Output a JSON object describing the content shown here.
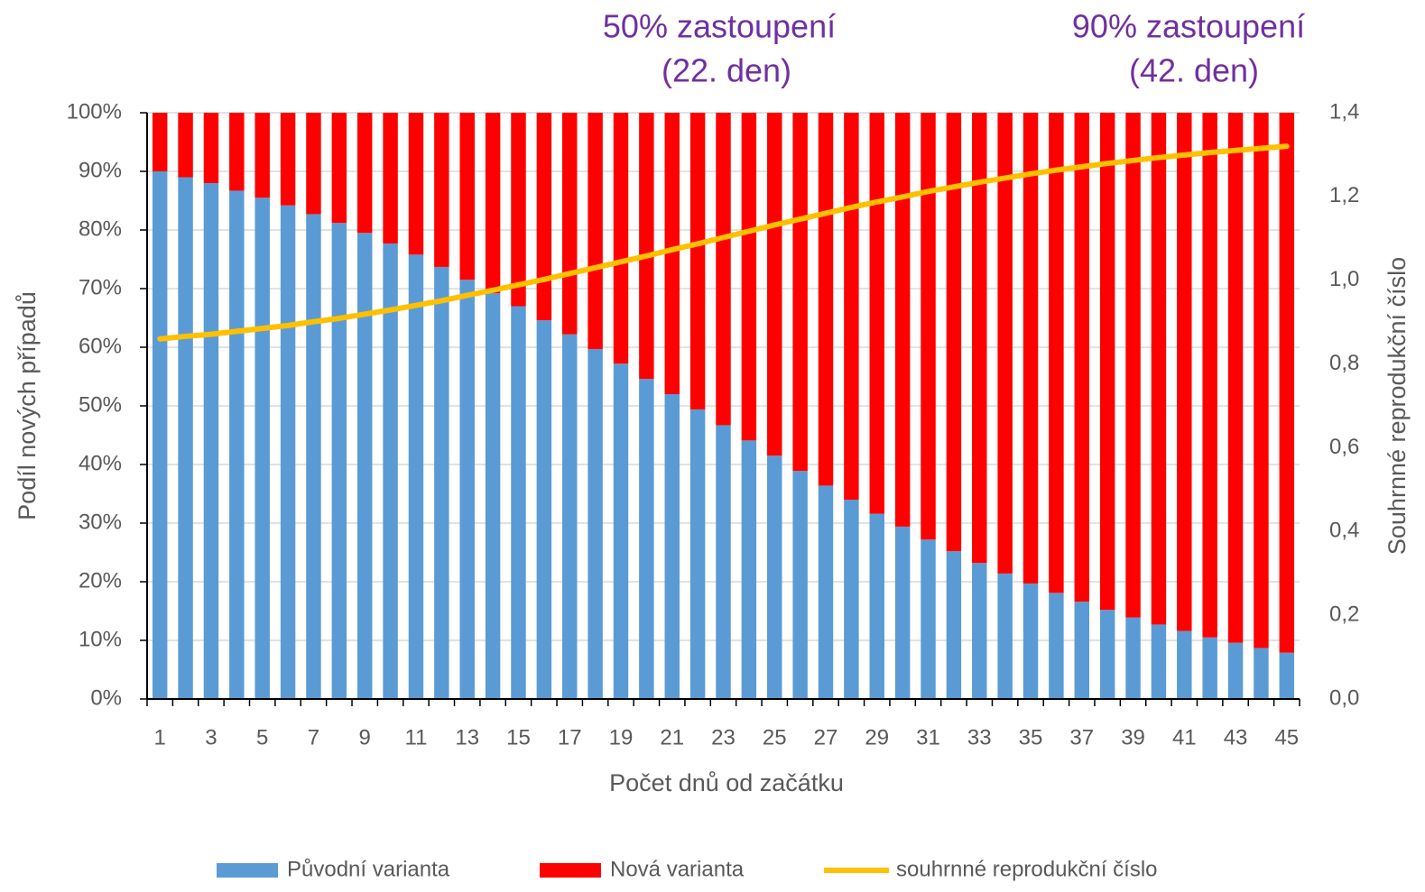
{
  "chart_data": {
    "type": "bar",
    "stacked": true,
    "annotations": [
      "50% zastoupení",
      "(22. den)",
      "90% zastoupení",
      "(42. den)"
    ],
    "xlabel": "Počet dnů od začátku",
    "ylabel": "Podíl nových případů",
    "y2label": "Souhrnné reprodukční číslo",
    "categories": [
      "1",
      null,
      "3",
      null,
      "5",
      null,
      "7",
      null,
      "9",
      null,
      "11",
      null,
      "13",
      null,
      "15",
      null,
      "17",
      null,
      "19",
      null,
      "21",
      null,
      "23",
      null,
      "25",
      null,
      "27",
      null,
      "29",
      null,
      "31",
      null,
      "33",
      null,
      "35",
      null,
      "37",
      null,
      "39",
      null,
      "41",
      null,
      "43",
      null,
      "45"
    ],
    "series": [
      {
        "name": "Původní varianta",
        "color": "#5b9bd5",
        "values": [
          90,
          89,
          88,
          86.7,
          85.5,
          84.2,
          82.7,
          81.2,
          79.5,
          77.7,
          75.8,
          73.7,
          71.5,
          69.2,
          67,
          64.6,
          62.2,
          59.7,
          57.2,
          54.6,
          52,
          49.4,
          46.7,
          44.1,
          41.5,
          38.9,
          36.4,
          34,
          31.6,
          29.4,
          27.2,
          25.2,
          23.2,
          21.4,
          19.7,
          18.1,
          16.6,
          15.2,
          13.9,
          12.7,
          11.6,
          10.5,
          9.6,
          8.7,
          7.9
        ]
      },
      {
        "name": "Nová varianta",
        "color": "#ff0000",
        "values": [
          10,
          11,
          12,
          13.3,
          14.5,
          15.8,
          17.3,
          18.8,
          20.5,
          22.3,
          24.2,
          26.3,
          28.5,
          30.8,
          33,
          35.4,
          37.8,
          40.3,
          42.8,
          45.4,
          48,
          50.6,
          53.3,
          55.9,
          58.5,
          61.1,
          63.6,
          66,
          68.4,
          70.6,
          72.8,
          74.8,
          76.8,
          78.6,
          80.3,
          81.9,
          83.4,
          84.8,
          86.1,
          87.3,
          88.4,
          89.5,
          90.4,
          91.3,
          92.1
        ]
      },
      {
        "name": "souhrnné reprodukční číslo",
        "color": "#ffc000",
        "type": "line",
        "axis": "y2",
        "values": [
          0.86,
          0.866,
          0.871,
          0.878,
          0.885,
          0.892,
          0.901,
          0.909,
          0.919,
          0.929,
          0.94,
          0.951,
          0.964,
          0.976,
          0.989,
          1.002,
          1.016,
          1.03,
          1.044,
          1.058,
          1.073,
          1.087,
          1.102,
          1.117,
          1.132,
          1.146,
          1.16,
          1.174,
          1.187,
          1.199,
          1.212,
          1.223,
          1.234,
          1.244,
          1.254,
          1.263,
          1.271,
          1.279,
          1.286,
          1.293,
          1.299,
          1.305,
          1.31,
          1.315,
          1.32
        ]
      }
    ],
    "ylim": [
      0,
      100
    ],
    "yticks": [
      {
        "value": 0,
        "label": "0%"
      },
      {
        "value": 10,
        "label": "10%"
      },
      {
        "value": 20,
        "label": "20%"
      },
      {
        "value": 30,
        "label": "30%"
      },
      {
        "value": 40,
        "label": "40%"
      },
      {
        "value": 50,
        "label": "50%"
      },
      {
        "value": 60,
        "label": "60%"
      },
      {
        "value": 70,
        "label": "70%"
      },
      {
        "value": 80,
        "label": "80%"
      },
      {
        "value": 90,
        "label": "90%"
      },
      {
        "value": 100,
        "label": "100%"
      }
    ],
    "y2lim": [
      0,
      1.4
    ],
    "y2ticks": [
      {
        "value": 0,
        "label": "0,0"
      },
      {
        "value": 0.2,
        "label": "0,2"
      },
      {
        "value": 0.4,
        "label": "0,4"
      },
      {
        "value": 0.6,
        "label": "0,6"
      },
      {
        "value": 0.8,
        "label": "0,8"
      },
      {
        "value": 1.0,
        "label": "1,0"
      },
      {
        "value": 1.2,
        "label": "1,2"
      },
      {
        "value": 1.4,
        "label": "1,4"
      }
    ],
    "grid": true,
    "legend": "bottom"
  }
}
